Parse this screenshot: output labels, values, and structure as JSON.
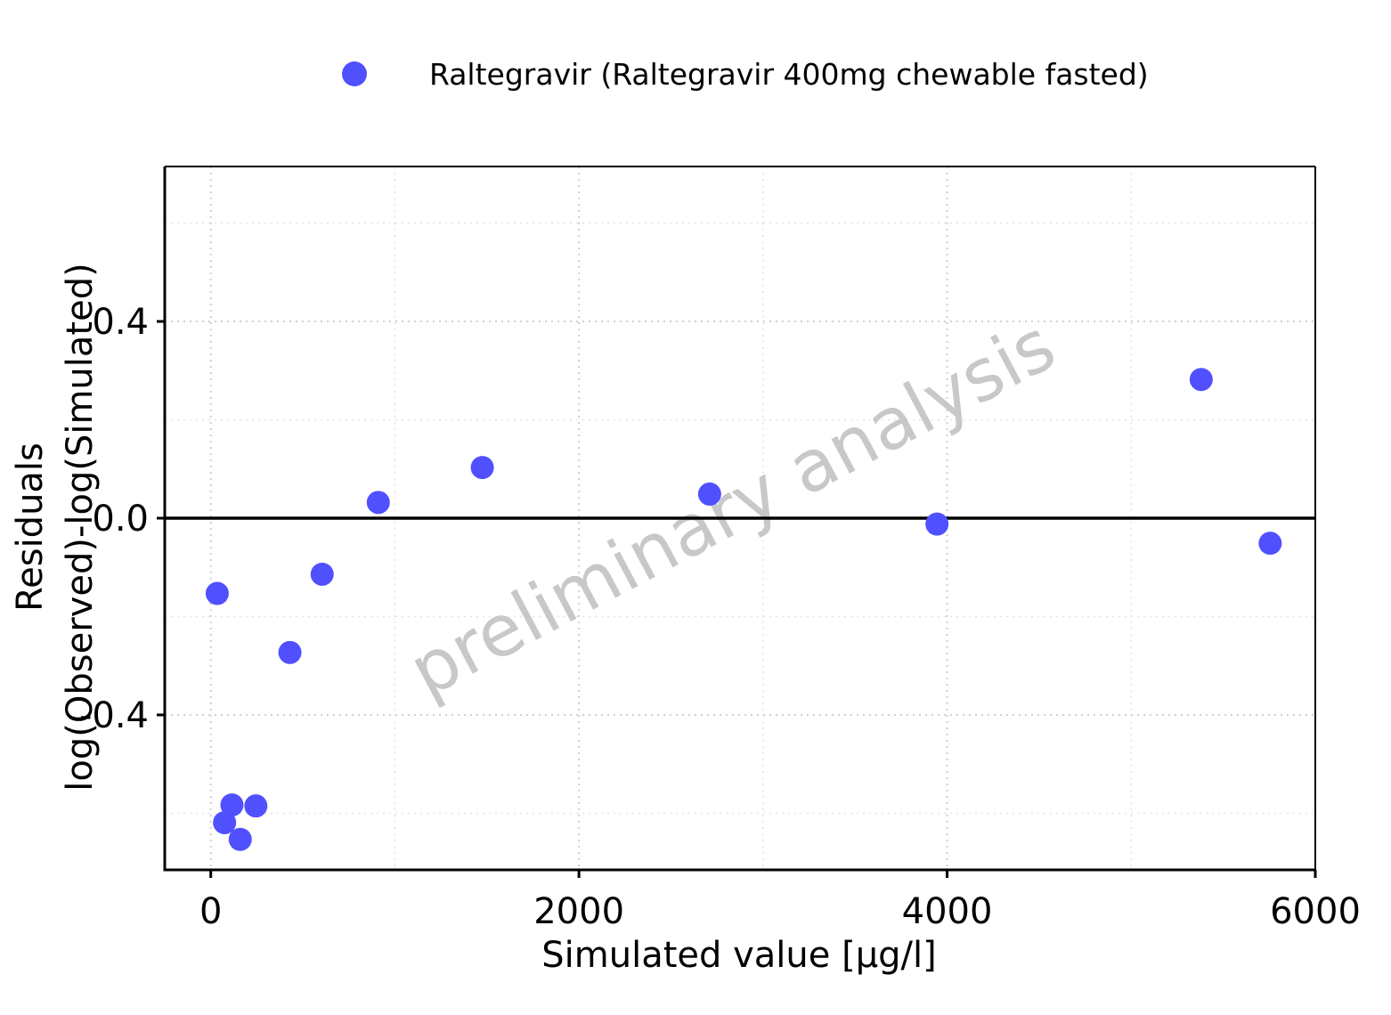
{
  "chart_data": {
    "type": "scatter",
    "title": "",
    "xlabel": "Simulated value [µg/l]",
    "ylabel_lines": [
      "Residuals",
      "log(Observed)-log(Simulated)"
    ],
    "xlim": [
      -250,
      6000
    ],
    "ylim": [
      -0.715,
      0.715
    ],
    "x_ticks": [
      0,
      2000,
      4000,
      6000
    ],
    "x_tick_labels": [
      "0",
      "2000",
      "4000",
      "6000"
    ],
    "y_ticks": [
      -0.4,
      0.0,
      0.4
    ],
    "y_tick_labels": [
      "-0.4",
      "0.0",
      "0.4"
    ],
    "x_minor_ticks": [
      1000,
      3000,
      5000
    ],
    "y_minor_ticks": [
      -0.6,
      -0.2,
      0.2,
      0.6
    ],
    "grid": true,
    "reference_line_y": 0,
    "legend_position": "top",
    "watermark": "preliminary analysis",
    "series": [
      {
        "name": "Raltegravir (Raltegravir 400mg chewable fasted)",
        "color": "#5050ff",
        "marker": "circle",
        "points": [
          {
            "x": 35,
            "y": -0.153
          },
          {
            "x": 75,
            "y": -0.619
          },
          {
            "x": 115,
            "y": -0.583
          },
          {
            "x": 160,
            "y": -0.653
          },
          {
            "x": 245,
            "y": -0.585
          },
          {
            "x": 430,
            "y": -0.273
          },
          {
            "x": 605,
            "y": -0.114
          },
          {
            "x": 910,
            "y": 0.032
          },
          {
            "x": 1475,
            "y": 0.103
          },
          {
            "x": 2710,
            "y": 0.049
          },
          {
            "x": 3945,
            "y": -0.012
          },
          {
            "x": 5380,
            "y": 0.282
          },
          {
            "x": 5755,
            "y": -0.051
          }
        ]
      }
    ]
  }
}
